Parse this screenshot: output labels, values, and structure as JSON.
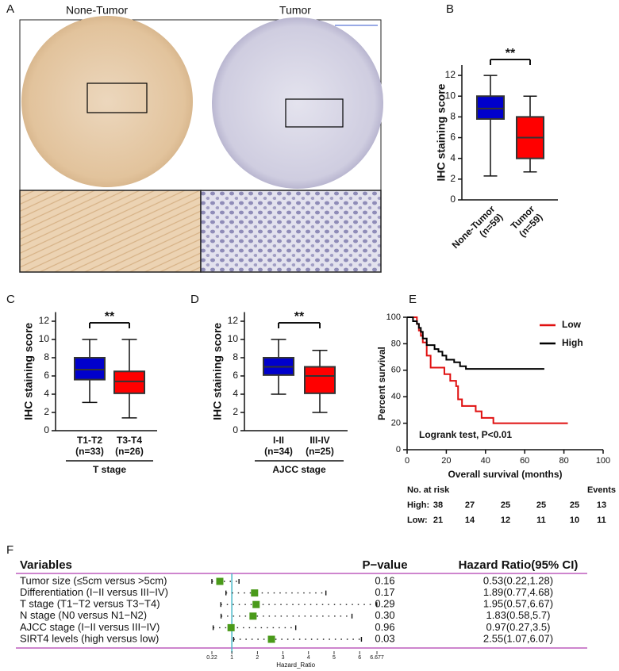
{
  "panel_labels": [
    "A",
    "B",
    "C",
    "D",
    "E",
    "F"
  ],
  "panel_a": {
    "left_label": "None-Tumor",
    "right_label": "Tumor"
  },
  "chart_data": [
    {
      "type": "box",
      "ylabel": "IHC staining score",
      "categories": [
        "None-Tumor",
        "Tumor"
      ],
      "n_labels": [
        "(n=59)",
        "(n=59)"
      ],
      "colors": [
        "#0000cc",
        "#ff0000"
      ],
      "boxes": [
        {
          "min": 2.3,
          "q1": 7.8,
          "median": 8.8,
          "q3": 10,
          "max": 12
        },
        {
          "min": 2.7,
          "q1": 4,
          "median": 6,
          "q3": 8,
          "max": 10
        }
      ],
      "ylim": [
        0,
        13
      ],
      "yticks": [
        0,
        2,
        4,
        6,
        8,
        10,
        12
      ],
      "significance": "**"
    },
    {
      "type": "box",
      "ylabel": "IHC staining score",
      "categories": [
        "T1-T2",
        "T3-T4"
      ],
      "n_labels": [
        "(n=33)",
        "(n=26)"
      ],
      "colors": [
        "#0000cc",
        "#ff0000"
      ],
      "boxes": [
        {
          "min": 3.1,
          "q1": 5.6,
          "median": 6.7,
          "q3": 8,
          "max": 10
        },
        {
          "min": 1.4,
          "q1": 4.1,
          "median": 5.4,
          "q3": 6.5,
          "max": 10
        }
      ],
      "ylim": [
        0,
        13
      ],
      "yticks": [
        0,
        2,
        4,
        6,
        8,
        10,
        12
      ],
      "significance": "**",
      "group_label": "T stage"
    },
    {
      "type": "box",
      "ylabel": "IHC staining score",
      "categories": [
        "I-II",
        "III-IV"
      ],
      "n_labels": [
        "(n=34)",
        "(n=25)"
      ],
      "colors": [
        "#0000cc",
        "#ff0000"
      ],
      "boxes": [
        {
          "min": 4,
          "q1": 6.1,
          "median": 7,
          "q3": 8,
          "max": 10
        },
        {
          "min": 2,
          "q1": 4.1,
          "median": 6,
          "q3": 7,
          "max": 8.8
        }
      ],
      "ylim": [
        0,
        13
      ],
      "yticks": [
        0,
        2,
        4,
        6,
        8,
        10,
        12
      ],
      "significance": "**",
      "group_label": "AJCC stage"
    },
    {
      "type": "km",
      "xlabel": "Overall survival (months)",
      "ylabel": "Percent survival",
      "annotation": "Logrank test, P<0.01",
      "xlim": [
        0,
        100
      ],
      "xticks": [
        0,
        20,
        40,
        60,
        80,
        100
      ],
      "ylim": [
        0,
        100
      ],
      "yticks": [
        0,
        20,
        40,
        60,
        80,
        100
      ],
      "series": [
        {
          "name": "Low",
          "color": "#e01010",
          "x": [
            0,
            5,
            5,
            6,
            6,
            7,
            7,
            8,
            8,
            10,
            10,
            12,
            12,
            19,
            19,
            22,
            22,
            25,
            25,
            26,
            26,
            28,
            28,
            35,
            35,
            38,
            38,
            44,
            44,
            82
          ],
          "values": [
            100,
            100,
            95,
            95,
            90,
            90,
            86,
            86,
            81,
            81,
            71,
            71,
            62,
            62,
            57,
            57,
            52,
            52,
            48,
            48,
            38,
            38,
            33,
            33,
            29,
            29,
            24,
            24,
            20,
            20
          ]
        },
        {
          "name": "High",
          "color": "#000000",
          "x": [
            0,
            3,
            3,
            5,
            5,
            6,
            6,
            7,
            7,
            8,
            8,
            10,
            10,
            14,
            14,
            16,
            16,
            18,
            18,
            20,
            20,
            24,
            24,
            27,
            27,
            30,
            30,
            70
          ],
          "values": [
            100,
            100,
            97,
            97,
            95,
            95,
            92,
            92,
            89,
            89,
            84,
            84,
            79,
            79,
            76,
            76,
            74,
            74,
            71,
            71,
            68,
            68,
            66,
            66,
            63,
            63,
            61,
            61
          ]
        }
      ],
      "risk_table": {
        "title": "No. at risk",
        "events_label": "Events",
        "rows": [
          {
            "name": "High:",
            "counts": [
              38,
              27,
              25,
              25,
              25
            ],
            "events": 13
          },
          {
            "name": "Low:",
            "counts": [
              21,
              14,
              12,
              11,
              10
            ],
            "events": 11
          }
        ]
      }
    },
    {
      "type": "forest",
      "headers": {
        "variable": "Variables",
        "p_value": "P−value",
        "hr": "Hazard Ratio(95% CI)"
      },
      "xlabel": "Hazard_Ratio",
      "xlim": [
        0.22,
        6.677
      ],
      "xticks": [
        0.22,
        1,
        2,
        3,
        4,
        5,
        6,
        6.677
      ],
      "reference": 1,
      "reference_color": "#4ab8c8",
      "marker_color": "#4a9a1a",
      "rule_color": "#b03cb0",
      "rows": [
        {
          "variable": "Tumor size (≤5cm versus >5cm)",
          "p_value": "0.16",
          "hr": 0.53,
          "lo": 0.22,
          "hi": 1.28,
          "label": "0.53(0.22,1.28)"
        },
        {
          "variable": "Differentiation (I−II versus III−IV)",
          "p_value": "0.17",
          "hr": 1.89,
          "lo": 0.77,
          "hi": 4.68,
          "label": "1.89(0.77,4.68)"
        },
        {
          "variable": "T stage (T1−T2 versus T3−T4)",
          "p_value": "0.29",
          "hr": 1.95,
          "lo": 0.57,
          "hi": 6.67,
          "label": "1.95(0.57,6.67)"
        },
        {
          "variable": "N stage (N0 versus N1−N2)",
          "p_value": "0.30",
          "hr": 1.83,
          "lo": 0.58,
          "hi": 5.7,
          "label": "1.83(0.58,5.7)"
        },
        {
          "variable": "AJCC stage (I−II versus III−IV)",
          "p_value": "0.96",
          "hr": 0.97,
          "lo": 0.27,
          "hi": 3.5,
          "label": "0.97(0.27,3.5)"
        },
        {
          "variable": "SIRT4 levels (high versus low)",
          "p_value": "0.03",
          "hr": 2.55,
          "lo": 1.07,
          "hi": 6.07,
          "label": "2.55(1.07,6.07)"
        }
      ]
    }
  ]
}
